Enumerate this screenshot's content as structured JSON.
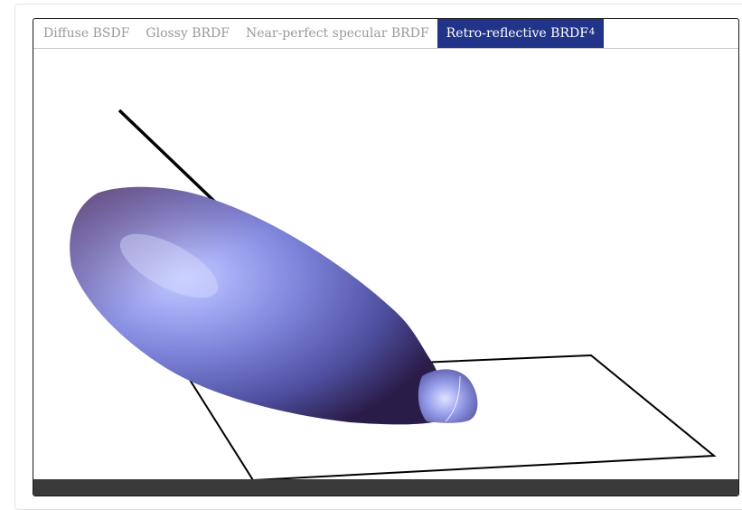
{
  "tabs": [
    {
      "label": "Diffuse BSDF",
      "active": false
    },
    {
      "label": "Glossy BRDF",
      "active": false
    },
    {
      "label": "Near-perfect specular BRDF",
      "active": false
    },
    {
      "label": "Retro-reflective BRDF",
      "superscript": "4",
      "active": true
    }
  ],
  "colors": {
    "active_tab": "#21348a",
    "lobe_light": "#b4bcff",
    "lobe_mid": "#6a70c8",
    "lobe_dark": "#2c1e4a",
    "plane_outline": "#000000",
    "bottom_bar": "#3a3a3a"
  },
  "viewer": {
    "object": "retro-reflective-lobe",
    "incident_ray": true,
    "surface_plane": true
  }
}
